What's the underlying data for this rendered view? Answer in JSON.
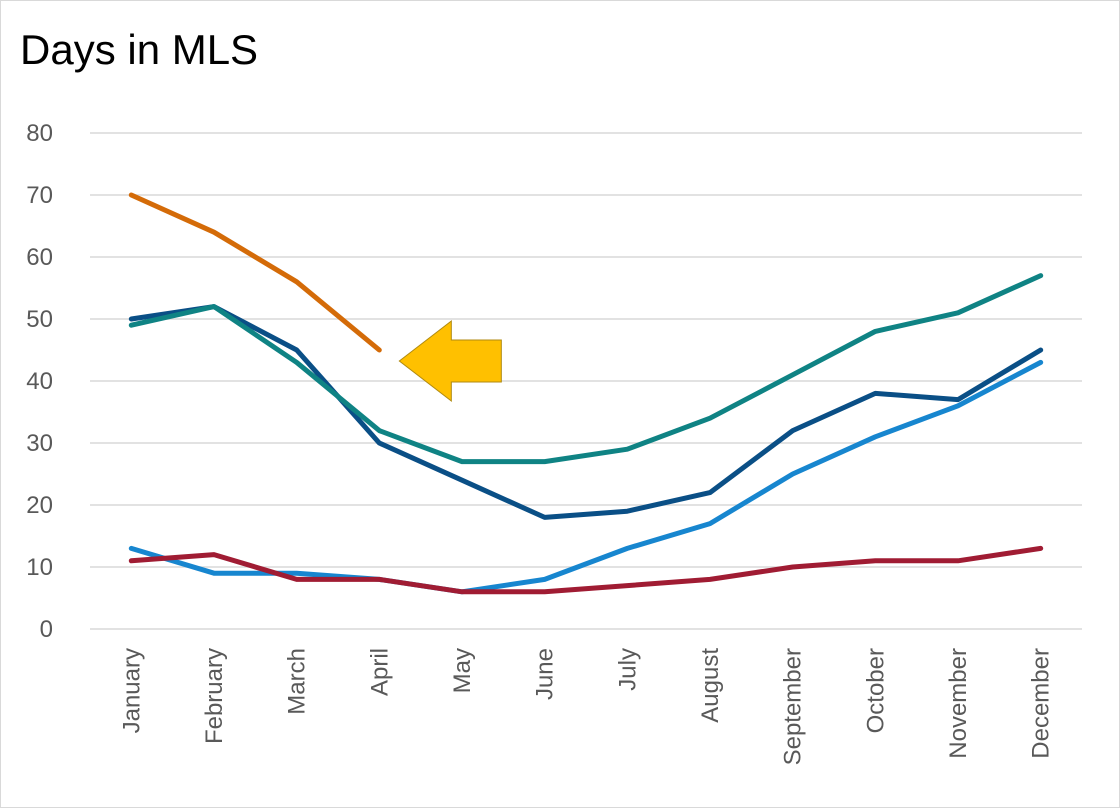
{
  "chart_data": {
    "type": "line",
    "title": "Days in MLS",
    "xlabel": "",
    "ylabel": "",
    "ylim": [
      0,
      80
    ],
    "yticks": [
      0,
      10,
      20,
      30,
      40,
      50,
      60,
      70,
      80
    ],
    "grid": true,
    "legend": "none",
    "categories": [
      "January",
      "February",
      "March",
      "April",
      "May",
      "June",
      "July",
      "August",
      "September",
      "October",
      "November",
      "December"
    ],
    "series": [
      {
        "color": "#d46b08",
        "values": [
          70,
          64,
          56,
          45,
          null,
          null,
          null,
          null,
          null,
          null,
          null,
          null
        ]
      },
      {
        "color": "#0a4f86",
        "values": [
          50,
          52,
          45,
          30,
          24,
          18,
          19,
          22,
          32,
          38,
          37,
          45
        ]
      },
      {
        "color": "#0f8384",
        "values": [
          49,
          52,
          43,
          32,
          27,
          27,
          29,
          34,
          41,
          48,
          51,
          57
        ]
      },
      {
        "color": "#1786cf",
        "values": [
          13,
          9,
          9,
          8,
          6,
          8,
          13,
          17,
          25,
          31,
          36,
          43
        ]
      },
      {
        "color": "#a01c33",
        "values": [
          11,
          12,
          8,
          8,
          6,
          6,
          7,
          8,
          10,
          11,
          11,
          13
        ]
      }
    ],
    "annotations": [
      {
        "type": "arrow",
        "direction": "left",
        "color": "#ffc000",
        "points_to": {
          "category": "April",
          "value": 45
        }
      }
    ]
  }
}
